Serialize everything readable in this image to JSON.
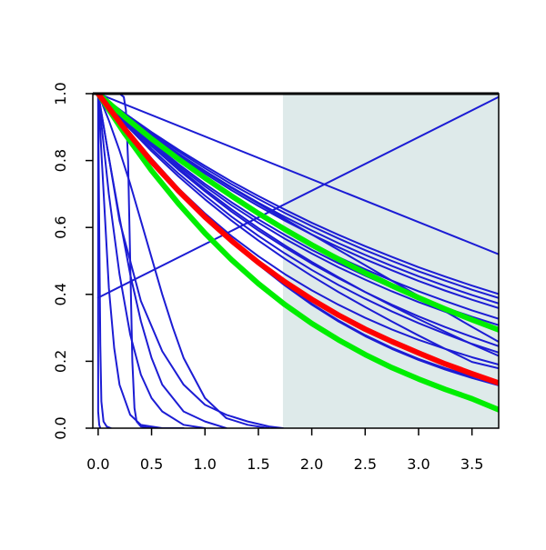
{
  "chart_data": {
    "type": "line",
    "title": "",
    "xlabel": "",
    "ylabel": "",
    "xlim": [
      -0.05,
      3.75
    ],
    "ylim": [
      0,
      1
    ],
    "grid": false,
    "x_ticks": [
      "0.0",
      "0.5",
      "1.0",
      "1.5",
      "2.0",
      "2.5",
      "3.0",
      "3.5"
    ],
    "x_tick_values": [
      0,
      0.5,
      1,
      1.5,
      2,
      2.5,
      3,
      3.5
    ],
    "y_ticks": [
      "0.0",
      "0.2",
      "0.4",
      "0.6",
      "0.8",
      "1.0"
    ],
    "y_tick_values": [
      0,
      0.2,
      0.4,
      0.6,
      0.8,
      1
    ],
    "shaded_region": {
      "x_from": 1.73,
      "x_to": 3.75,
      "color": "#deeaea"
    },
    "colors": {
      "blue": "#1c1cd4",
      "red": "#ff0000",
      "green": "#00ee00",
      "axis": "#000000"
    },
    "x_sample": [
      0,
      0.25,
      0.5,
      0.75,
      1.0,
      1.25,
      1.5,
      1.75,
      2.0,
      2.25,
      2.5,
      2.75,
      3.0,
      3.25,
      3.5,
      3.75
    ],
    "series": [
      {
        "color": "blue",
        "width": 2,
        "x": [
          0,
          3.75
        ],
        "y": [
          1.0,
          0.52
        ]
      },
      {
        "color": "blue",
        "width": 2,
        "x": [
          0,
          3.75
        ],
        "y": [
          0.39,
          0.99
        ]
      },
      {
        "color": "blue",
        "width": 2,
        "y": [
          1.0,
          0.937,
          0.877,
          0.821,
          0.769,
          0.72,
          0.674,
          0.631,
          0.591,
          0.553,
          0.518,
          0.485,
          0.454,
          0.425,
          0.398,
          0.373
        ]
      },
      {
        "color": "blue",
        "width": 2,
        "y": [
          1.0,
          0.935,
          0.873,
          0.815,
          0.761,
          0.711,
          0.664,
          0.62,
          0.579,
          0.541,
          0.505,
          0.472,
          0.44,
          0.411,
          0.384,
          0.359
        ]
      },
      {
        "color": "blue",
        "width": 2,
        "y": [
          1.0,
          0.939,
          0.882,
          0.828,
          0.777,
          0.729,
          0.685,
          0.643,
          0.604,
          0.567,
          0.532,
          0.5,
          0.469,
          0.441,
          0.414,
          0.389
        ]
      },
      {
        "color": "blue",
        "width": 2,
        "y": [
          1.0,
          0.941,
          0.885,
          0.833,
          0.784,
          0.737,
          0.694,
          0.653,
          0.614,
          0.578,
          0.544,
          0.512,
          0.481,
          0.453,
          0.426,
          0.401
        ]
      },
      {
        "color": "blue",
        "width": 2,
        "y": [
          1.0,
          0.929,
          0.862,
          0.8,
          0.742,
          0.689,
          0.64,
          0.594,
          0.551,
          0.511,
          0.475,
          0.441,
          0.409,
          0.38,
          0.352,
          0.327
        ]
      },
      {
        "color": "blue",
        "width": 2,
        "y": [
          1.0,
          0.932,
          0.872,
          0.818,
          0.767,
          0.718,
          0.671,
          0.625,
          0.579,
          0.533,
          0.487,
          0.441,
          0.395,
          0.349,
          0.303,
          0.258
        ]
      },
      {
        "color": "blue",
        "width": 2,
        "y": [
          1.0,
          0.925,
          0.855,
          0.79,
          0.73,
          0.675,
          0.624,
          0.577,
          0.533,
          0.493,
          0.456,
          0.421,
          0.389,
          0.36,
          0.333,
          0.308
        ]
      },
      {
        "color": "blue",
        "width": 2,
        "y": [
          1.0,
          0.922,
          0.85,
          0.784,
          0.723,
          0.666,
          0.614,
          0.566,
          0.522,
          0.481,
          0.444,
          0.409,
          0.377,
          0.348,
          0.321,
          0.296
        ]
      },
      {
        "color": "blue",
        "width": 2,
        "y": [
          1.0,
          0.915,
          0.835,
          0.762,
          0.695,
          0.632,
          0.575,
          0.522,
          0.473,
          0.428,
          0.387,
          0.349,
          0.314,
          0.282,
          0.252,
          0.226
        ]
      },
      {
        "color": "blue",
        "width": 2,
        "y": [
          1.0,
          0.918,
          0.843,
          0.773,
          0.708,
          0.647,
          0.591,
          0.54,
          0.492,
          0.448,
          0.407,
          0.369,
          0.334,
          0.302,
          0.273,
          0.245
        ]
      },
      {
        "color": "blue",
        "width": 2,
        "y": [
          1.0,
          0.92,
          0.846,
          0.778,
          0.714,
          0.654,
          0.598,
          0.546,
          0.497,
          0.451,
          0.407,
          0.366,
          0.326,
          0.288,
          0.251,
          0.216
        ]
      },
      {
        "color": "blue",
        "width": 2,
        "y": [
          1.0,
          0.91,
          0.828,
          0.753,
          0.684,
          0.62,
          0.561,
          0.506,
          0.455,
          0.407,
          0.362,
          0.319,
          0.277,
          0.237,
          0.198,
          0.179
        ]
      },
      {
        "color": "blue",
        "width": 2,
        "y": [
          1.0,
          0.895,
          0.801,
          0.717,
          0.642,
          0.574,
          0.514,
          0.46,
          0.412,
          0.369,
          0.33,
          0.295,
          0.264,
          0.237,
          0.212,
          0.19
        ]
      },
      {
        "color": "blue",
        "width": 2,
        "y": [
          1.0,
          0.9,
          0.806,
          0.718,
          0.636,
          0.56,
          0.491,
          0.428,
          0.372,
          0.322,
          0.278,
          0.24,
          0.207,
          0.179,
          0.155,
          0.135
        ]
      },
      {
        "color": "blue",
        "width": 2,
        "y": [
          1.0,
          0.898,
          0.803,
          0.715,
          0.633,
          0.558,
          0.489,
          0.426,
          0.369,
          0.319,
          0.275,
          0.237,
          0.204,
          0.175,
          0.15,
          0.128
        ]
      },
      {
        "color": "blue",
        "width": 2,
        "x": [
          0,
          0.01,
          0.02,
          0.03,
          0.05,
          0.08,
          0.12
        ],
        "y": [
          1.0,
          0.6,
          0.25,
          0.08,
          0.02,
          0.005,
          0.0
        ]
      },
      {
        "color": "blue",
        "width": 2,
        "x": [
          0,
          0.05,
          0.1,
          0.15,
          0.2,
          0.3,
          0.4,
          0.6,
          0.8
        ],
        "y": [
          1.0,
          0.71,
          0.42,
          0.24,
          0.13,
          0.04,
          0.01,
          0.0,
          0.0
        ]
      },
      {
        "color": "blue",
        "width": 2,
        "x": [
          0,
          0.1,
          0.2,
          0.3,
          0.4,
          0.5,
          0.6,
          0.8,
          1.0
        ],
        "y": [
          1.0,
          0.7,
          0.46,
          0.28,
          0.16,
          0.09,
          0.05,
          0.01,
          0.0
        ]
      },
      {
        "color": "blue",
        "width": 2,
        "x": [
          0,
          0.1,
          0.2,
          0.3,
          0.4,
          0.5,
          0.6,
          0.8,
          1.0,
          1.2
        ],
        "y": [
          1.0,
          0.81,
          0.63,
          0.46,
          0.32,
          0.21,
          0.13,
          0.05,
          0.02,
          0.0
        ]
      },
      {
        "color": "blue",
        "width": 2,
        "x": [
          0,
          0.1,
          0.2,
          0.3,
          0.4,
          0.5,
          0.6,
          0.7,
          0.8,
          1.0,
          1.2,
          1.4,
          1.6
        ],
        "y": [
          1.0,
          0.92,
          0.83,
          0.73,
          0.62,
          0.51,
          0.4,
          0.3,
          0.21,
          0.09,
          0.03,
          0.01,
          0.0
        ]
      },
      {
        "color": "blue",
        "width": 2,
        "x": [
          0,
          0.2,
          0.4,
          0.6,
          0.8,
          1.0,
          1.2,
          1.4,
          1.6,
          1.73
        ],
        "y": [
          1.0,
          0.62,
          0.38,
          0.23,
          0.13,
          0.07,
          0.04,
          0.02,
          0.005,
          0.0
        ]
      },
      {
        "color": "blue",
        "width": 2,
        "x": [
          0,
          0.05,
          0.15,
          0.2,
          0.24,
          0.26,
          0.28,
          0.3,
          0.32,
          0.34,
          0.36,
          0.4,
          0.5,
          0.7
        ],
        "y": [
          0.99,
          1.0,
          1.0,
          1.0,
          0.99,
          0.95,
          0.8,
          0.5,
          0.2,
          0.06,
          0.02,
          0.005,
          0.0,
          0.0
        ]
      },
      {
        "color": "blue",
        "width": 2,
        "x": [
          0,
          0.0,
          0.0,
          0.01,
          0.02
        ],
        "y": [
          1.0,
          0.5,
          0.05,
          0.01,
          0.0
        ]
      },
      {
        "color": "green",
        "width": 6,
        "y": [
          1.0,
          0.93,
          0.865,
          0.805,
          0.748,
          0.694,
          0.642,
          0.594,
          0.548,
          0.505,
          0.464,
          0.426,
          0.39,
          0.356,
          0.324,
          0.294
        ]
      },
      {
        "color": "green",
        "width": 6,
        "y": [
          1.0,
          0.88,
          0.77,
          0.672,
          0.583,
          0.503,
          0.432,
          0.369,
          0.313,
          0.264,
          0.22,
          0.181,
          0.147,
          0.116,
          0.088,
          0.055
        ]
      },
      {
        "color": "red",
        "width": 6,
        "y": [
          1.0,
          0.894,
          0.797,
          0.71,
          0.631,
          0.56,
          0.495,
          0.437,
          0.385,
          0.338,
          0.296,
          0.259,
          0.225,
          0.192,
          0.163,
          0.135
        ]
      }
    ]
  }
}
